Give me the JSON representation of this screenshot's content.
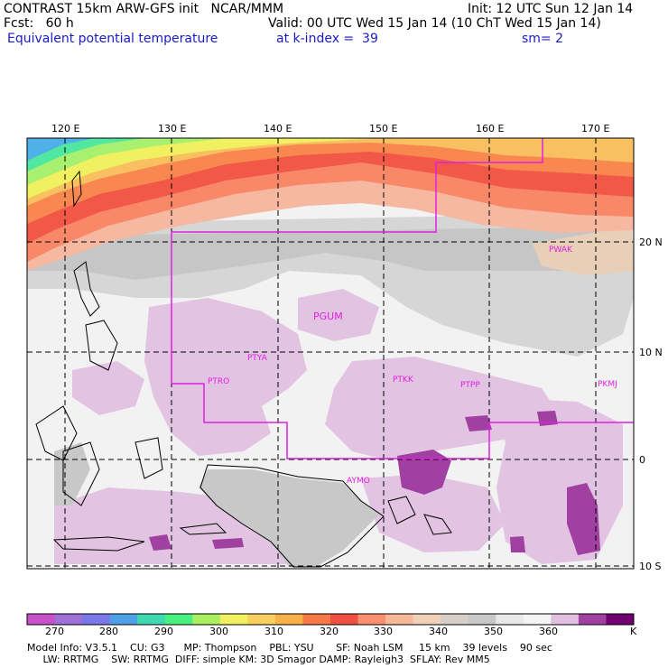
{
  "header": {
    "line1_left": "CONTRAST 15km ARW-GFS init   NCAR/MMM",
    "line1_right": "Init: 12 UTC Sun 12 Jan 14",
    "line2_left": "Fcst:   60 h",
    "line2_right": "Valid: 00 UTC Wed 15 Jan 14 (10 ChT Wed 15 Jan 14)",
    "line3_left": "Equivalent potential temperature",
    "line3_mid": "at k-index =  39",
    "line3_right": "sm= 2"
  },
  "map": {
    "lon_labels": [
      "120 E",
      "130 E",
      "140 E",
      "150 E",
      "160 E",
      "170 E"
    ],
    "lat_labels": [
      "20 N",
      "10 N",
      "0",
      "10 S"
    ],
    "stations": [
      "PWAK",
      "PGUM",
      "PTYA",
      "PTRO",
      "PTKK",
      "PTPP",
      "PKMJ",
      "AYMO"
    ],
    "line_color": "#e020e0"
  },
  "colorbar": {
    "labels": [
      "270",
      "280",
      "290",
      "300",
      "310",
      "320",
      "330",
      "340",
      "350",
      "360"
    ],
    "unit": "K",
    "colors": [
      "#c850c8",
      "#a070d8",
      "#7878e8",
      "#50a0e8",
      "#40d8b0",
      "#48f080",
      "#a8f060",
      "#f0f060",
      "#f8d060",
      "#f8b048",
      "#f87848",
      "#f05040",
      "#f89070",
      "#f8b898",
      "#f0d0b8",
      "#d8d0c8",
      "#c8c8c8",
      "#e8e8e8",
      "#f4f4f4",
      "#e0c0e0",
      "#a040a0",
      "#700070"
    ]
  },
  "model_info": {
    "line1": "Model Info: V3.5.1    CU: G3      MP: Thompson    PBL: YSU       SF: Noah LSM     15 km    39 levels    90 sec",
    "line2": "     LW: RRTMG    SW: RRTMG  DIFF: simple KM: 3D Smagor DAMP: Rayleigh3  SFLAY: Rev MM5"
  }
}
